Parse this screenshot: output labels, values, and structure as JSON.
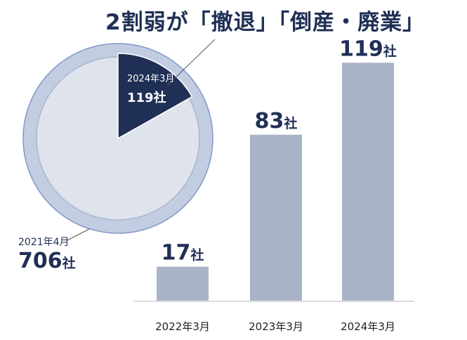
{
  "title": "2割弱が「撤退」「倒産・廃業」",
  "colors": {
    "navy": "#1f2f55",
    "bar": "#a9b3c8",
    "pie_fill": "#dfe3ec",
    "pie_rim": "#c3cde2",
    "pie_border": "#7f97c9"
  },
  "chart_data": [
    {
      "type": "pie",
      "slices": [
        {
          "label": "2024年3月",
          "value": 119,
          "value_label": "119社"
        },
        {
          "label": "2021年4月",
          "value": 706,
          "value_label": "706社"
        }
      ]
    },
    {
      "type": "bar",
      "categories": [
        "2022年3月",
        "2023年3月",
        "2024年3月"
      ],
      "values": [
        17,
        83,
        119
      ],
      "data_labels": [
        {
          "num": "17",
          "unit": "社"
        },
        {
          "num": "83",
          "unit": "社"
        },
        {
          "num": "119",
          "unit": "社"
        }
      ],
      "ylim": [
        0,
        130
      ],
      "grid": false,
      "legend": "none"
    }
  ]
}
